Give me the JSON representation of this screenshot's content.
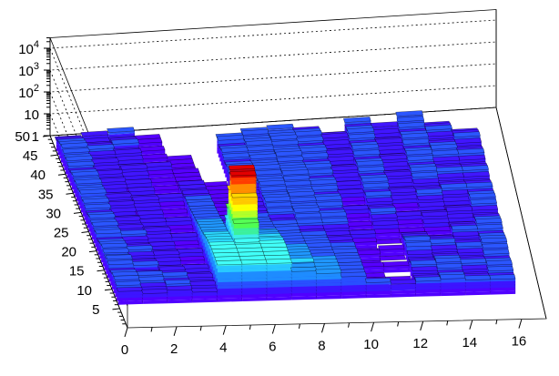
{
  "chart_data": {
    "type": "lego3d",
    "title": "",
    "xlabel": "",
    "ylabel": "",
    "zlabel": "",
    "x_tick_labels": [
      "0",
      "2",
      "4",
      "6",
      "8",
      "10",
      "12",
      "14",
      "16"
    ],
    "y_tick_labels": [
      "5",
      "10",
      "15",
      "20",
      "25",
      "30",
      "35",
      "40",
      "45",
      "50"
    ],
    "z_tick_labels": [
      {
        "base": "1",
        "exp": ""
      },
      {
        "base": "10",
        "exp": ""
      },
      {
        "base": "10",
        "exp": "2"
      },
      {
        "base": "10",
        "exp": "3"
      },
      {
        "base": "10",
        "exp": "4"
      }
    ],
    "xlim": [
      0,
      17
    ],
    "ylim": [
      0,
      50
    ],
    "zlim": [
      1,
      30000
    ],
    "z_scale": "log",
    "grid": true,
    "palette": [
      "#5000ff",
      "#3c14ff",
      "#2850ff",
      "#1e8cff",
      "#28c8ff",
      "#3cf0e6",
      "#3cf09b",
      "#50ff50",
      "#b4ff28",
      "#ffff00",
      "#ffc800",
      "#ff8c00",
      "#ff3c00",
      "#d20000"
    ],
    "columns": [
      {
        "x": 0,
        "values": [
          0,
          0,
          0,
          0,
          0,
          0,
          4,
          5,
          6,
          6,
          5,
          4,
          6,
          7,
          5,
          6,
          7,
          6,
          5,
          4,
          6,
          5,
          6,
          5,
          6,
          5,
          4,
          5,
          6,
          5,
          7,
          6,
          5,
          6,
          5,
          6,
          5,
          4,
          5,
          6,
          5,
          6,
          7,
          6,
          5,
          4,
          3,
          0,
          0,
          0
        ]
      },
      {
        "x": 1,
        "values": [
          0,
          0,
          0,
          0,
          0,
          0,
          3,
          4,
          5,
          6,
          4,
          3,
          5,
          4,
          3,
          4,
          5,
          4,
          3,
          4,
          5,
          3,
          4,
          3,
          4,
          3,
          2,
          3,
          4,
          3,
          4,
          3,
          2,
          3,
          4,
          3,
          4,
          2,
          3,
          4,
          3,
          4,
          5,
          4,
          3,
          3,
          4,
          0,
          0,
          0
        ]
      },
      {
        "x": 2,
        "values": [
          0,
          0,
          0,
          0,
          0,
          0,
          4,
          5,
          4,
          5,
          3,
          4,
          3,
          2,
          3,
          4,
          3,
          2,
          3,
          2,
          3,
          4,
          3,
          2,
          3,
          2,
          3,
          2,
          3,
          4,
          3,
          2,
          3,
          2,
          3,
          2,
          3,
          4,
          3,
          2,
          3,
          4,
          3,
          5,
          4,
          3,
          5,
          0,
          0,
          0
        ]
      },
      {
        "x": 3,
        "values": [
          0,
          0,
          0,
          0,
          0,
          0,
          3,
          4,
          3,
          4,
          3,
          2,
          3,
          2,
          1,
          2,
          3,
          2,
          1,
          2,
          3,
          2,
          1,
          2,
          3,
          2,
          1,
          2,
          1,
          2,
          3,
          2,
          1,
          2,
          1,
          2,
          1,
          2,
          3,
          2,
          1,
          2,
          1,
          2,
          1,
          2,
          2,
          0,
          0,
          0
        ]
      },
      {
        "x": 4,
        "values": [
          0,
          0,
          0,
          0,
          0,
          0,
          50,
          50,
          50,
          50,
          50,
          45,
          40,
          35,
          30,
          25,
          20,
          18,
          16,
          14,
          12,
          10,
          9,
          8,
          7,
          6,
          6,
          5,
          5,
          4,
          4,
          3,
          3,
          3,
          2,
          2,
          2,
          2,
          1,
          1,
          1,
          1,
          1,
          0,
          0,
          0,
          0,
          0,
          0,
          0
        ]
      },
      {
        "x": 5,
        "values": [
          0,
          0,
          0,
          0,
          0,
          0,
          50,
          50,
          50,
          50,
          50,
          60,
          300,
          3000,
          20000,
          25000,
          2000,
          200,
          40,
          10,
          6,
          5,
          4,
          3,
          3,
          2,
          2,
          2,
          2,
          1,
          1,
          1,
          1,
          1,
          1,
          1,
          0,
          0,
          0,
          0,
          0,
          0,
          0,
          0,
          0,
          0,
          0,
          0,
          0,
          0
        ]
      },
      {
        "x": 6,
        "values": [
          0,
          0,
          0,
          0,
          0,
          0,
          50,
          50,
          50,
          50,
          50,
          45,
          40,
          30,
          25,
          20,
          16,
          12,
          10,
          8,
          7,
          6,
          5,
          5,
          4,
          4,
          3,
          3,
          3,
          2,
          3,
          4,
          5,
          6,
          5,
          6,
          5,
          4,
          5,
          6,
          5,
          4,
          6,
          5,
          0,
          0,
          0,
          0,
          0,
          0
        ]
      },
      {
        "x": 7,
        "values": [
          0,
          0,
          0,
          0,
          0,
          0,
          20,
          20,
          22,
          20,
          18,
          16,
          14,
          12,
          10,
          9,
          8,
          7,
          6,
          6,
          5,
          5,
          4,
          4,
          5,
          6,
          7,
          6,
          5,
          6,
          7,
          6,
          5,
          6,
          7,
          6,
          5,
          6,
          5,
          6,
          7,
          6,
          5,
          6,
          5,
          0,
          0,
          0,
          0,
          0
        ]
      },
      {
        "x": 8,
        "values": [
          0,
          0,
          0,
          0,
          0,
          0,
          15,
          14,
          13,
          12,
          11,
          10,
          9,
          8,
          8,
          7,
          6,
          5,
          5,
          4,
          4,
          5,
          6,
          7,
          6,
          5,
          6,
          7,
          6,
          5,
          6,
          7,
          8,
          7,
          6,
          5,
          6,
          7,
          6,
          5,
          6,
          7,
          6,
          5,
          6,
          0,
          0,
          0,
          0,
          0
        ]
      },
      {
        "x": 9,
        "values": [
          0,
          0,
          0,
          0,
          0,
          0,
          10,
          9,
          9,
          8,
          8,
          7,
          6,
          6,
          5,
          5,
          4,
          4,
          3,
          3,
          4,
          5,
          6,
          5,
          4,
          5,
          6,
          5,
          4,
          5,
          6,
          5,
          4,
          5,
          6,
          5,
          4,
          5,
          6,
          5,
          4,
          5,
          6,
          5,
          4,
          0,
          0,
          0,
          0,
          0
        ]
      },
      {
        "x": 10,
        "values": [
          0,
          0,
          0,
          0,
          0,
          0,
          5,
          1,
          2,
          1,
          1,
          1,
          2,
          1,
          1,
          2,
          1,
          1,
          2,
          3,
          2,
          1,
          2,
          1,
          2,
          3,
          2,
          1,
          2,
          3,
          2,
          3,
          2,
          3,
          4,
          3,
          2,
          3,
          4,
          3,
          2,
          3,
          4,
          3,
          2,
          0,
          0,
          0,
          0,
          0
        ]
      },
      {
        "x": 11,
        "values": [
          0,
          0,
          0,
          0,
          0,
          0,
          4,
          0,
          1,
          0,
          1,
          0,
          2,
          1,
          0,
          1,
          2,
          1,
          0,
          1,
          2,
          3,
          4,
          5,
          4,
          3,
          4,
          5,
          4,
          5,
          6,
          5,
          4,
          5,
          6,
          5,
          4,
          5,
          6,
          5,
          4,
          5,
          6,
          5,
          4,
          5,
          0,
          0,
          0,
          0
        ]
      },
      {
        "x": 12,
        "values": [
          0,
          0,
          0,
          0,
          0,
          0,
          5,
          4,
          3,
          4,
          5,
          4,
          3,
          4,
          6,
          7,
          5,
          4,
          3,
          1,
          2,
          1,
          2,
          3,
          2,
          1,
          2,
          3,
          4,
          3,
          2,
          3,
          4,
          3,
          2,
          3,
          4,
          3,
          2,
          3,
          4,
          3,
          2,
          3,
          4,
          0,
          0,
          0,
          0,
          0
        ]
      },
      {
        "x": 13,
        "values": [
          0,
          0,
          0,
          0,
          0,
          0,
          6,
          5,
          4,
          5,
          6,
          5,
          4,
          3,
          4,
          5,
          4,
          3,
          2,
          1,
          2,
          3,
          4,
          3,
          2,
          3,
          4,
          5,
          4,
          3,
          4,
          5,
          6,
          5,
          4,
          5,
          6,
          5,
          4,
          5,
          6,
          5,
          4,
          5,
          6,
          7,
          0,
          0,
          0,
          0
        ]
      },
      {
        "x": 14,
        "values": [
          0,
          0,
          0,
          0,
          0,
          0,
          5,
          4,
          3,
          4,
          5,
          4,
          3,
          4,
          5,
          4,
          3,
          4,
          5,
          4,
          3,
          2,
          3,
          4,
          3,
          2,
          3,
          4,
          5,
          4,
          3,
          4,
          5,
          4,
          3,
          4,
          5,
          6,
          5,
          4,
          3,
          4,
          5,
          4,
          3,
          0,
          0,
          0,
          0,
          0
        ]
      },
      {
        "x": 15,
        "values": [
          0,
          0,
          0,
          0,
          0,
          0,
          5,
          4,
          5,
          6,
          5,
          4,
          5,
          6,
          7,
          6,
          5,
          4,
          5,
          6,
          5,
          4,
          3,
          4,
          5,
          6,
          5,
          4,
          5,
          4,
          3,
          4,
          5,
          4,
          3,
          4,
          5,
          4,
          3,
          4,
          5,
          4,
          3,
          0,
          0,
          0,
          0,
          0,
          0,
          0
        ]
      }
    ]
  }
}
